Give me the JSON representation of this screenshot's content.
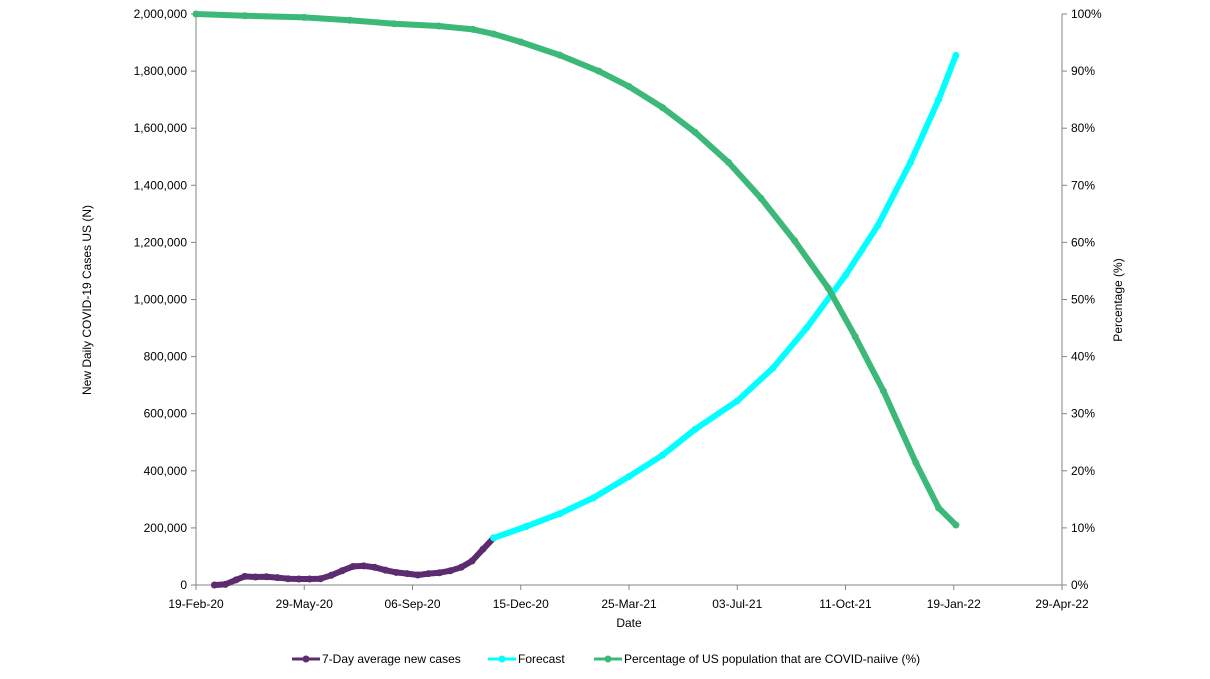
{
  "chart_data": {
    "type": "line",
    "xlabel": "Date",
    "ylabel_left": "New Daily COVID-19 Cases US (N)",
    "ylabel_right": "Percentage (%)",
    "x_ticks": [
      "19-Feb-20",
      "29-May-20",
      "06-Sep-20",
      "15-Dec-20",
      "25-Mar-21",
      "03-Jul-21",
      "11-Oct-21",
      "19-Jan-22",
      "29-Apr-22"
    ],
    "y_left_ticks": [
      "0",
      "200,000",
      "400,000",
      "600,000",
      "800,000",
      "1,000,000",
      "1,200,000",
      "1,400,000",
      "1,600,000",
      "1,800,000",
      "2,000,000"
    ],
    "y_right_ticks": [
      "0%",
      "10%",
      "20%",
      "30%",
      "40%",
      "50%",
      "60%",
      "70%",
      "80%",
      "90%",
      "100%"
    ],
    "xlim_days_from_start": [
      0,
      800
    ],
    "ylim_left": [
      0,
      2000000
    ],
    "ylim_right": [
      0,
      100
    ],
    "grid": false,
    "legend_position": "bottom",
    "series": [
      {
        "name": "7-Day average new cases",
        "axis": "left",
        "color": "#5b2c6f",
        "points": [
          {
            "x": "2020-03-07",
            "y": 0
          },
          {
            "x": "2020-03-17",
            "y": 2000
          },
          {
            "x": "2020-03-27",
            "y": 18000
          },
          {
            "x": "2020-04-04",
            "y": 30000
          },
          {
            "x": "2020-04-14",
            "y": 28000
          },
          {
            "x": "2020-04-24",
            "y": 29000
          },
          {
            "x": "2020-05-04",
            "y": 26000
          },
          {
            "x": "2020-05-14",
            "y": 22000
          },
          {
            "x": "2020-05-24",
            "y": 21000
          },
          {
            "x": "2020-06-03",
            "y": 21000
          },
          {
            "x": "2020-06-13",
            "y": 22000
          },
          {
            "x": "2020-06-23",
            "y": 34000
          },
          {
            "x": "2020-07-03",
            "y": 50000
          },
          {
            "x": "2020-07-13",
            "y": 65000
          },
          {
            "x": "2020-07-23",
            "y": 67000
          },
          {
            "x": "2020-08-02",
            "y": 62000
          },
          {
            "x": "2020-08-12",
            "y": 52000
          },
          {
            "x": "2020-08-22",
            "y": 44000
          },
          {
            "x": "2020-09-01",
            "y": 40000
          },
          {
            "x": "2020-09-11",
            "y": 35000
          },
          {
            "x": "2020-09-21",
            "y": 40000
          },
          {
            "x": "2020-10-01",
            "y": 43000
          },
          {
            "x": "2020-10-11",
            "y": 50000
          },
          {
            "x": "2020-10-21",
            "y": 62000
          },
          {
            "x": "2020-10-31",
            "y": 84000
          },
          {
            "x": "2020-11-10",
            "y": 125000
          },
          {
            "x": "2020-11-20",
            "y": 165000
          }
        ]
      },
      {
        "name": "Forecast",
        "axis": "left",
        "color": "#00ffff",
        "points": [
          {
            "x": "2020-11-20",
            "y": 165000
          },
          {
            "x": "2020-12-20",
            "y": 205000
          },
          {
            "x": "2021-01-20",
            "y": 250000
          },
          {
            "x": "2021-02-20",
            "y": 305000
          },
          {
            "x": "2021-03-25",
            "y": 380000
          },
          {
            "x": "2021-04-25",
            "y": 455000
          },
          {
            "x": "2021-05-25",
            "y": 545000
          },
          {
            "x": "2021-07-03",
            "y": 645000
          },
          {
            "x": "2021-08-05",
            "y": 760000
          },
          {
            "x": "2021-09-05",
            "y": 900000
          },
          {
            "x": "2021-10-11",
            "y": 1085000
          },
          {
            "x": "2021-11-10",
            "y": 1260000
          },
          {
            "x": "2021-12-10",
            "y": 1480000
          },
          {
            "x": "2022-01-05",
            "y": 1700000
          },
          {
            "x": "2022-01-21",
            "y": 1855000
          }
        ]
      },
      {
        "name": "Percentage of US population that are COVID-naiive (%)",
        "axis": "right",
        "color": "#3cb878",
        "points": [
          {
            "x": "2020-02-19",
            "y": 100
          },
          {
            "x": "2020-04-04",
            "y": 99.7
          },
          {
            "x": "2020-05-29",
            "y": 99.4
          },
          {
            "x": "2020-07-10",
            "y": 98.9
          },
          {
            "x": "2020-08-20",
            "y": 98.3
          },
          {
            "x": "2020-09-30",
            "y": 97.9
          },
          {
            "x": "2020-11-01",
            "y": 97.3
          },
          {
            "x": "2020-11-20",
            "y": 96.5
          },
          {
            "x": "2020-12-15",
            "y": 95.1
          },
          {
            "x": "2021-01-20",
            "y": 92.8
          },
          {
            "x": "2021-02-25",
            "y": 90.0
          },
          {
            "x": "2021-03-25",
            "y": 87.3
          },
          {
            "x": "2021-04-25",
            "y": 83.6
          },
          {
            "x": "2021-05-25",
            "y": 79.3
          },
          {
            "x": "2021-06-25",
            "y": 74.0
          },
          {
            "x": "2021-07-25",
            "y": 67.7
          },
          {
            "x": "2021-08-25",
            "y": 60.3
          },
          {
            "x": "2021-09-25",
            "y": 52.0
          },
          {
            "x": "2021-10-20",
            "y": 43.5
          },
          {
            "x": "2021-11-15",
            "y": 34.0
          },
          {
            "x": "2021-12-15",
            "y": 21.4
          },
          {
            "x": "2022-01-05",
            "y": 13.5
          },
          {
            "x": "2022-01-21",
            "y": 10.5
          }
        ]
      }
    ]
  }
}
